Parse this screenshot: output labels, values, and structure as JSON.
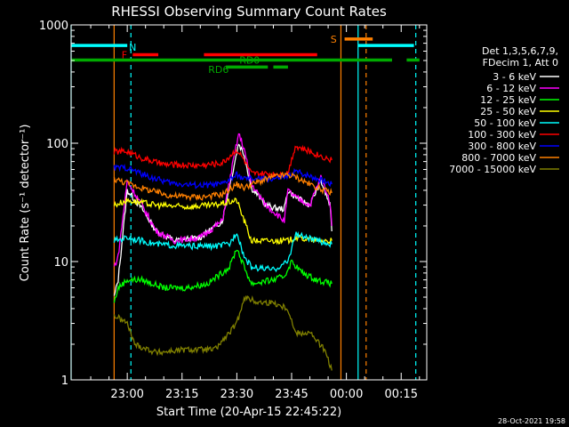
{
  "chart_data": {
    "type": "line",
    "title": "RHESSI Observing Summary Count Rates",
    "xlabel": "Start Time (20-Apr-15 22:45:22)",
    "ylabel": "Count Rate (s⁻¹ detector⁻¹)",
    "y_scale": "log",
    "ylim": [
      1,
      1000
    ],
    "y_ticks": [
      {
        "value": 1,
        "label": "1"
      },
      {
        "value": 10,
        "label": "10"
      },
      {
        "value": 100,
        "label": "100"
      },
      {
        "value": 1000,
        "label": "1000"
      }
    ],
    "x_range_minutes": [
      -15.37,
      82.0
    ],
    "x_ticks": [
      {
        "minute": 0,
        "label": "23:00"
      },
      {
        "minute": 15,
        "label": "23:15"
      },
      {
        "minute": 30,
        "label": "23:30"
      },
      {
        "minute": 45,
        "label": "23:45"
      },
      {
        "minute": 60,
        "label": "00:00"
      },
      {
        "minute": 75,
        "label": "00:15"
      }
    ],
    "legend_header": [
      "Det 1,3,5,6,7,9,",
      "FDecim 1, Att 0"
    ],
    "legend_position": "right",
    "series": [
      {
        "name": "3 - 6 keV",
        "color": "#ffffff",
        "values": [
          [
            -3.6,
            5
          ],
          [
            -2.5,
            7
          ],
          [
            0,
            40
          ],
          [
            4,
            28
          ],
          [
            8,
            18
          ],
          [
            13,
            15
          ],
          [
            20,
            16
          ],
          [
            26,
            22
          ],
          [
            29,
            60
          ],
          [
            30.5,
            100
          ],
          [
            32,
            80
          ],
          [
            34,
            42
          ],
          [
            38,
            30
          ],
          [
            41,
            28
          ],
          [
            43,
            28
          ],
          [
            44,
            40
          ],
          [
            46,
            35
          ],
          [
            50,
            30
          ],
          [
            53,
            48
          ],
          [
            55.5,
            30
          ],
          [
            56,
            18
          ]
        ]
      },
      {
        "name": "6 - 12 keV",
        "color": "#ff00ff",
        "values": [
          [
            -3.6,
            9
          ],
          [
            -2.5,
            11
          ],
          [
            0,
            48
          ],
          [
            4,
            30
          ],
          [
            8,
            18
          ],
          [
            13,
            15
          ],
          [
            20,
            16
          ],
          [
            26,
            22
          ],
          [
            29,
            70
          ],
          [
            30.5,
            120
          ],
          [
            32,
            90
          ],
          [
            34,
            45
          ],
          [
            38,
            30
          ],
          [
            41,
            25
          ],
          [
            43,
            22
          ],
          [
            44,
            40
          ],
          [
            46,
            35
          ],
          [
            50,
            30
          ],
          [
            53,
            52
          ],
          [
            55.5,
            32
          ],
          [
            56,
            20
          ]
        ]
      },
      {
        "name": "12 - 25 keV",
        "color": "#00ff00",
        "values": [
          [
            -3.6,
            4.5
          ],
          [
            -2.5,
            6
          ],
          [
            0,
            7
          ],
          [
            4,
            7
          ],
          [
            10,
            6
          ],
          [
            16,
            6
          ],
          [
            22,
            6.5
          ],
          [
            28,
            9
          ],
          [
            30,
            13
          ],
          [
            32,
            9
          ],
          [
            34,
            6.5
          ],
          [
            40,
            7
          ],
          [
            43,
            7.5
          ],
          [
            45,
            10
          ],
          [
            48,
            8
          ],
          [
            52,
            7
          ],
          [
            56,
            6.5
          ]
        ]
      },
      {
        "name": "25 - 50 keV",
        "color": "#ffff00",
        "values": [
          [
            -3.6,
            30
          ],
          [
            0,
            33
          ],
          [
            8,
            30
          ],
          [
            16,
            29
          ],
          [
            24,
            30
          ],
          [
            30,
            33
          ],
          [
            34,
            15
          ],
          [
            40,
            15
          ],
          [
            44,
            15
          ],
          [
            46,
            16
          ],
          [
            52,
            15
          ],
          [
            56,
            15
          ]
        ]
      },
      {
        "name": "50 - 100 keV",
        "color": "#00ffff",
        "values": [
          [
            -3.6,
            15
          ],
          [
            0,
            16
          ],
          [
            8,
            14
          ],
          [
            16,
            13.5
          ],
          [
            24,
            13.5
          ],
          [
            28,
            14
          ],
          [
            30,
            18
          ],
          [
            32,
            11
          ],
          [
            34,
            9
          ],
          [
            40,
            8.5
          ],
          [
            44,
            10
          ],
          [
            46,
            17
          ],
          [
            52,
            15
          ],
          [
            56,
            14
          ]
        ]
      },
      {
        "name": "100 - 300 keV",
        "color": "#ff0000",
        "values": [
          [
            -3.6,
            85
          ],
          [
            0,
            85
          ],
          [
            4,
            75
          ],
          [
            10,
            66
          ],
          [
            20,
            65
          ],
          [
            26,
            68
          ],
          [
            30,
            88
          ],
          [
            32,
            72
          ],
          [
            34,
            55
          ],
          [
            40,
            55
          ],
          [
            44,
            56
          ],
          [
            46,
            95
          ],
          [
            50,
            85
          ],
          [
            54,
            76
          ],
          [
            56,
            72
          ]
        ]
      },
      {
        "name": "300 - 800 keV",
        "color": "#0000ff",
        "values": [
          [
            -3.6,
            62
          ],
          [
            0,
            62
          ],
          [
            6,
            52
          ],
          [
            12,
            46
          ],
          [
            20,
            44
          ],
          [
            26,
            45
          ],
          [
            30,
            54
          ],
          [
            32,
            50
          ],
          [
            34,
            50
          ],
          [
            40,
            50
          ],
          [
            44,
            52
          ],
          [
            46,
            58
          ],
          [
            50,
            53
          ],
          [
            54,
            48
          ],
          [
            56,
            45
          ]
        ]
      },
      {
        "name": "800 - 7000 keV",
        "color": "#ff8000",
        "values": [
          [
            -3.6,
            50
          ],
          [
            0,
            46
          ],
          [
            6,
            40
          ],
          [
            12,
            36
          ],
          [
            20,
            35
          ],
          [
            26,
            37
          ],
          [
            30,
            45
          ],
          [
            32,
            42
          ],
          [
            34,
            45
          ],
          [
            40,
            52
          ],
          [
            44,
            54
          ],
          [
            46,
            52
          ],
          [
            50,
            45
          ],
          [
            54,
            40
          ],
          [
            56,
            38
          ]
        ]
      },
      {
        "name": "7000 - 15000 keV",
        "color": "#808000",
        "values": [
          [
            -3.6,
            3.5
          ],
          [
            0,
            3
          ],
          [
            2,
            2
          ],
          [
            8,
            1.7
          ],
          [
            16,
            1.8
          ],
          [
            24,
            1.8
          ],
          [
            28,
            2.5
          ],
          [
            30,
            3
          ],
          [
            32,
            5
          ],
          [
            36,
            4.5
          ],
          [
            40,
            4.5
          ],
          [
            44,
            4
          ],
          [
            46,
            2.5
          ],
          [
            50,
            2.5
          ],
          [
            54,
            1.8
          ],
          [
            56,
            1.2
          ]
        ]
      }
    ],
    "annotations": [
      {
        "text": "N",
        "color": "#00ffff",
        "minute": 1.5,
        "y": 650
      },
      {
        "text": "F",
        "color": "#ff0000",
        "minute": -0.8,
        "y": 560
      },
      {
        "text": "RD0",
        "color": "#00aa00",
        "minute": 33.5,
        "y": 505
      },
      {
        "text": "RD6",
        "color": "#00aa00",
        "minute": 25,
        "y": 420
      },
      {
        "text": "S",
        "color": "#ff8000",
        "minute": 56.5,
        "y": 760
      }
    ],
    "bars": [
      {
        "label": "N",
        "color": "#00ffff",
        "y": 670,
        "spans": [
          [
            -15.37,
            0
          ],
          [
            63.2,
            78.5
          ]
        ]
      },
      {
        "label": "F",
        "color": "#ff0000",
        "y": 560,
        "spans": [
          [
            1.5,
            8.5
          ],
          [
            21,
            52
          ]
        ]
      },
      {
        "label": "S",
        "color": "#ff8000",
        "y": 760,
        "spans": [
          [
            59.5,
            67.2
          ]
        ]
      },
      {
        "label": "RD0",
        "color": "#00aa00",
        "y": 505,
        "spans": [
          [
            -15.37,
            72.5
          ],
          [
            76.5,
            80
          ]
        ]
      },
      {
        "label": "RD6",
        "color": "#00aa00",
        "y": 440,
        "spans": [
          [
            27,
            38.5
          ],
          [
            40,
            44
          ]
        ]
      }
    ],
    "vlines": [
      {
        "minute": -15.37,
        "color": "#00ffff",
        "style": "solid"
      },
      {
        "minute": -3.6,
        "color": "#ff8000",
        "style": "solid"
      },
      {
        "minute": 1,
        "color": "#00ffff",
        "style": "dashed"
      },
      {
        "minute": 58.5,
        "color": "#ff8000",
        "style": "solid"
      },
      {
        "minute": 63.2,
        "color": "#00ffff",
        "style": "solid"
      },
      {
        "minute": 65.4,
        "color": "#ff8000",
        "style": "dashed"
      },
      {
        "minute": 79,
        "color": "#00ffff",
        "style": "dashed"
      }
    ]
  },
  "footer_date": "28-Oct-2021 19:58"
}
